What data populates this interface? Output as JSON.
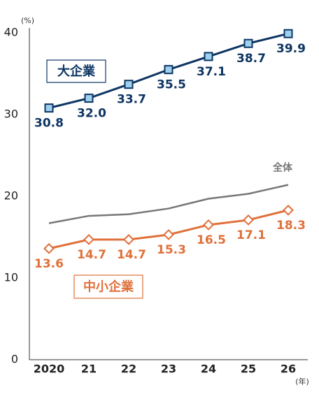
{
  "chart_data": {
    "type": "line",
    "y_unit": "(%)",
    "x_unit": "(年)",
    "categories": [
      "2020",
      "21",
      "22",
      "23",
      "24",
      "25",
      "26"
    ],
    "ylim": [
      0,
      40
    ],
    "yticks": [
      0,
      10,
      20,
      30,
      40
    ],
    "grid": false,
    "series": [
      {
        "name": "大企業",
        "color": "#0d3563",
        "marker": "square",
        "marker_fill": "#9fd0ee",
        "values": [
          30.8,
          32.0,
          33.7,
          35.5,
          37.1,
          38.7,
          39.9
        ],
        "value_labels": [
          "30.8",
          "32.0",
          "33.7",
          "35.5",
          "37.1",
          "38.7",
          "39.9"
        ]
      },
      {
        "name": "全体",
        "color": "#777777",
        "values": [
          16.7,
          17.6,
          17.8,
          18.5,
          19.7,
          20.3,
          21.4
        ]
      },
      {
        "name": "中小企業",
        "color": "#e0703a",
        "marker": "diamond",
        "marker_fill": "#ffffff",
        "values": [
          13.6,
          14.7,
          14.7,
          15.3,
          16.5,
          17.1,
          18.3
        ],
        "value_labels": [
          "13.6",
          "14.7",
          "14.7",
          "15.3",
          "16.5",
          "17.1",
          "18.3"
        ]
      }
    ]
  }
}
